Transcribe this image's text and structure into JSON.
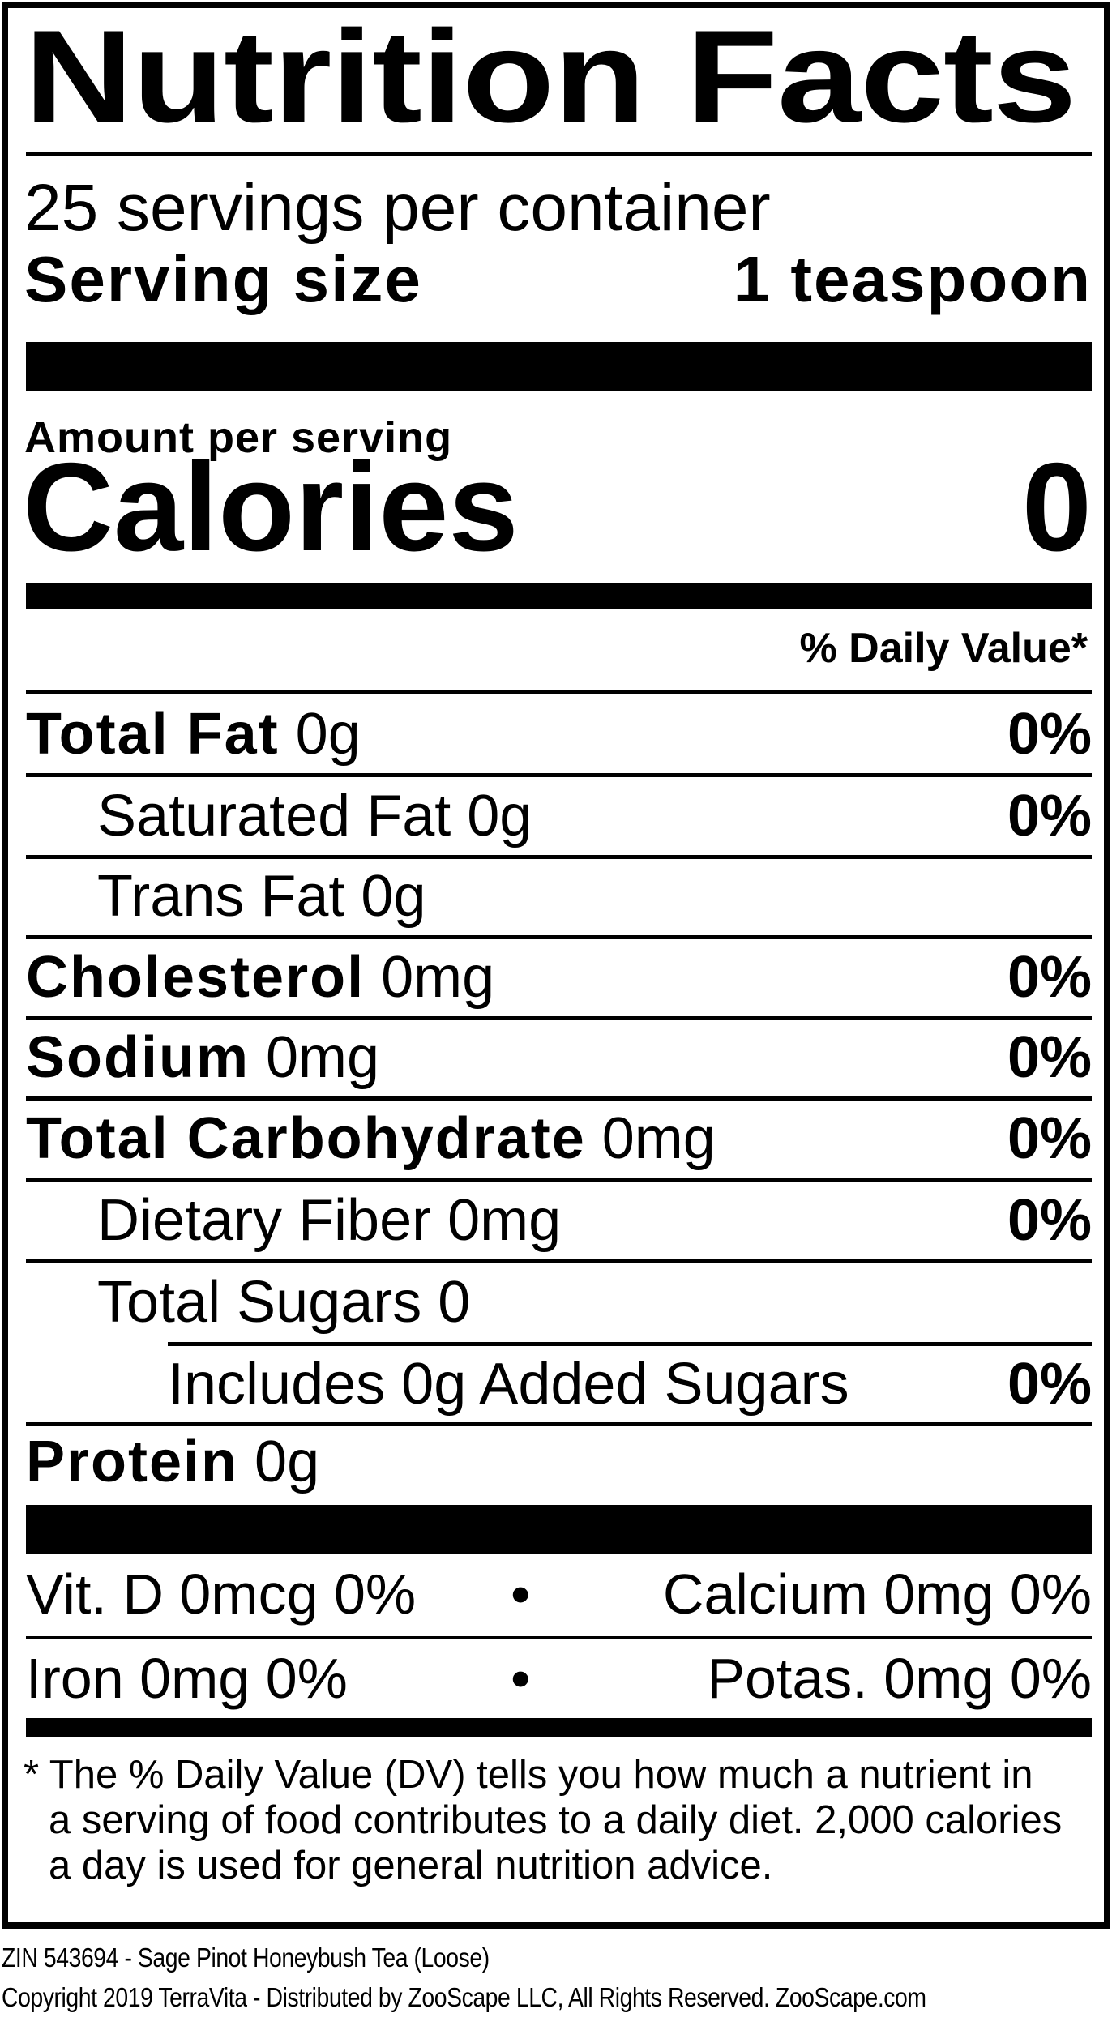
{
  "label": {
    "title": "Nutrition Facts",
    "servings_per_container": "25 servings per container",
    "serving_size_label": "Serving size",
    "serving_size_value": "1 teaspoon",
    "amount_per_serving": "Amount per serving",
    "calories_label": "Calories",
    "calories_value": "0",
    "daily_value_header": "% Daily Value*",
    "nutrients": [
      {
        "name": "Total Fat",
        "amount": "0g",
        "dv": "0%"
      },
      {
        "name": "Saturated Fat 0g",
        "amount": "",
        "dv": "0%"
      },
      {
        "name": "Trans Fat 0g",
        "amount": "",
        "dv": ""
      },
      {
        "name": "Cholesterol",
        "amount": "0mg",
        "dv": "0%"
      },
      {
        "name": "Sodium",
        "amount": "0mg",
        "dv": "0%"
      },
      {
        "name": "Total Carbohydrate",
        "amount": "0mg",
        "dv": "0%"
      },
      {
        "name": "Dietary Fiber 0mg",
        "amount": "",
        "dv": "0%"
      },
      {
        "name": "Total Sugars 0",
        "amount": "",
        "dv": ""
      },
      {
        "name": "Includes 0g Added Sugars",
        "amount": "",
        "dv": "0%"
      },
      {
        "name": "Protein",
        "amount": "0g",
        "dv": ""
      }
    ],
    "vitamins": [
      {
        "left": "Vit. D 0mcg 0%",
        "separator": "•",
        "right": "Calcium 0mg 0%"
      },
      {
        "left": "Iron 0mg 0%",
        "separator": "•",
        "right": "Potas. 0mg 0%"
      }
    ],
    "footnote": [
      "* The % Daily Value (DV) tells you how much a nutrient in",
      "a serving of food contributes to a daily diet. 2,000 calories",
      "a day is used for general nutrition advice."
    ]
  },
  "product_line": "ZIN 543694 - Sage Pinot Honeybush Tea (Loose)",
  "copyright_line": "Copyright 2019 TerraVita - Distributed by ZooScape LLC, All Rights Reserved. ZooScape.com"
}
